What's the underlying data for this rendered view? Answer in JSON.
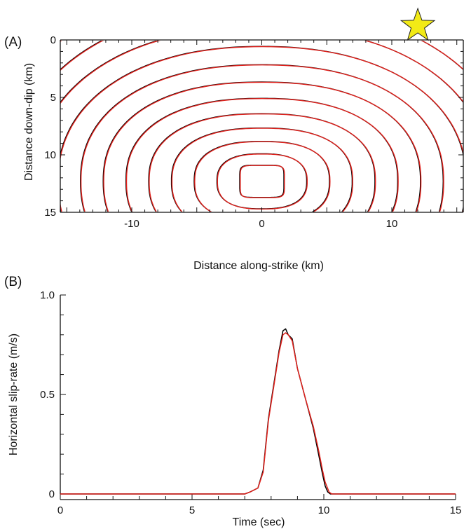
{
  "colors": {
    "series_black": "#000000",
    "series_red": "#e0201b",
    "star_fill": "#f2ea16",
    "axis": "#111111"
  },
  "chart_data": [
    {
      "panel": "(A)",
      "type": "contour",
      "xlabel": "Distance along-strike (km)",
      "ylabel": "Distance down-dip (km)",
      "xlim": [
        -15.5,
        15.5
      ],
      "ylim": [
        15,
        0
      ],
      "x_ticks": [
        -10,
        0,
        10
      ],
      "x_tick_labels": [
        "-10",
        "0",
        "10"
      ],
      "y_ticks": [
        0,
        5,
        10,
        15
      ],
      "y_tick_labels": [
        "0",
        "5",
        "10",
        "15"
      ],
      "hypocenter_marker": {
        "shape": "star",
        "x": 12,
        "y": 0
      },
      "contours": {
        "center": [
          0,
          12.3
        ],
        "innermost_halfwidth_km": 1.7,
        "innermost_halfheight_km": 1.4,
        "x_spacing_km": 1.75,
        "y_spacing_km": 0.95,
        "count": 13
      },
      "series": [
        "black",
        "red"
      ]
    },
    {
      "panel": "(B)",
      "type": "line",
      "xlabel": "Time (sec)",
      "ylabel": "Horizontal slip-rate (m/s)",
      "xlim": [
        0,
        15
      ],
      "ylim": [
        0,
        1.0
      ],
      "x_ticks": [
        0,
        5,
        10,
        15
      ],
      "x_tick_labels": [
        "0",
        "5",
        "10",
        "15"
      ],
      "y_ticks": [
        0,
        0.5,
        1.0
      ],
      "y_tick_labels": [
        "0",
        "0.5",
        "1.0"
      ],
      "series": [
        {
          "color": "black",
          "x": [
            0,
            7.0,
            7.2,
            7.5,
            7.7,
            7.9,
            8.1,
            8.3,
            8.45,
            8.55,
            8.65,
            8.8,
            9.0,
            9.3,
            9.6,
            9.8,
            9.95,
            10.05,
            10.15,
            10.25,
            15
          ],
          "y": [
            0,
            0,
            0.01,
            0.03,
            0.12,
            0.38,
            0.55,
            0.72,
            0.82,
            0.83,
            0.8,
            0.78,
            0.63,
            0.48,
            0.33,
            0.2,
            0.1,
            0.04,
            0.01,
            0,
            0
          ]
        },
        {
          "color": "red",
          "x": [
            0,
            7.0,
            7.2,
            7.5,
            7.7,
            7.9,
            8.1,
            8.3,
            8.45,
            8.55,
            8.65,
            8.8,
            9.0,
            9.3,
            9.6,
            9.8,
            9.95,
            10.05,
            10.2,
            10.3,
            15
          ],
          "y": [
            0,
            0,
            0.01,
            0.03,
            0.11,
            0.37,
            0.54,
            0.71,
            0.8,
            0.81,
            0.8,
            0.77,
            0.63,
            0.48,
            0.34,
            0.22,
            0.12,
            0.06,
            0.01,
            0,
            0
          ]
        }
      ]
    }
  ]
}
